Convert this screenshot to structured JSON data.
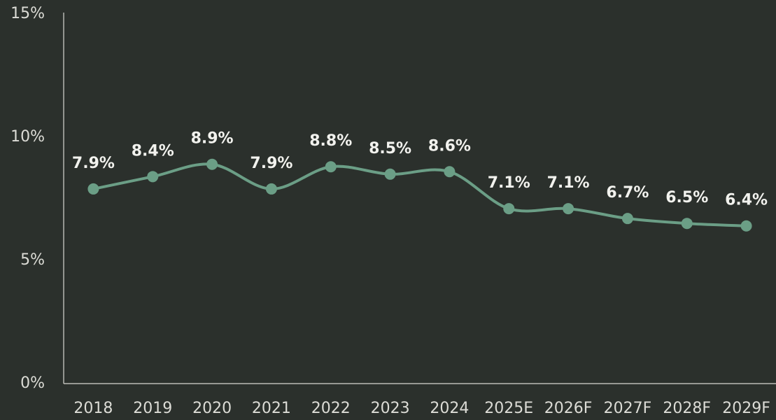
{
  "chart_data": {
    "type": "line",
    "categories": [
      "2018",
      "2019",
      "2020",
      "2021",
      "2022",
      "2023",
      "2024",
      "2025E",
      "2026F",
      "2027F",
      "2028F",
      "2029F"
    ],
    "series": [
      {
        "color": "#6b9e86",
        "values": [
          7.9,
          8.4,
          8.9,
          7.9,
          8.8,
          8.5,
          8.6,
          7.1,
          7.1,
          6.7,
          6.5,
          6.4
        ],
        "value_labels": [
          "7.9%",
          "8.4%",
          "8.9%",
          "7.9%",
          "8.8%",
          "8.5%",
          "8.6%",
          "7.1%",
          "7.1%",
          "6.7%",
          "6.5%",
          "6.4%"
        ]
      }
    ],
    "ylim": [
      0,
      15
    ],
    "yticks": [
      {
        "value": 0,
        "label": "0%"
      },
      {
        "value": 5,
        "label": "5%"
      },
      {
        "value": 10,
        "label": "10%"
      },
      {
        "value": 15,
        "label": "15%"
      }
    ],
    "grid": false
  }
}
